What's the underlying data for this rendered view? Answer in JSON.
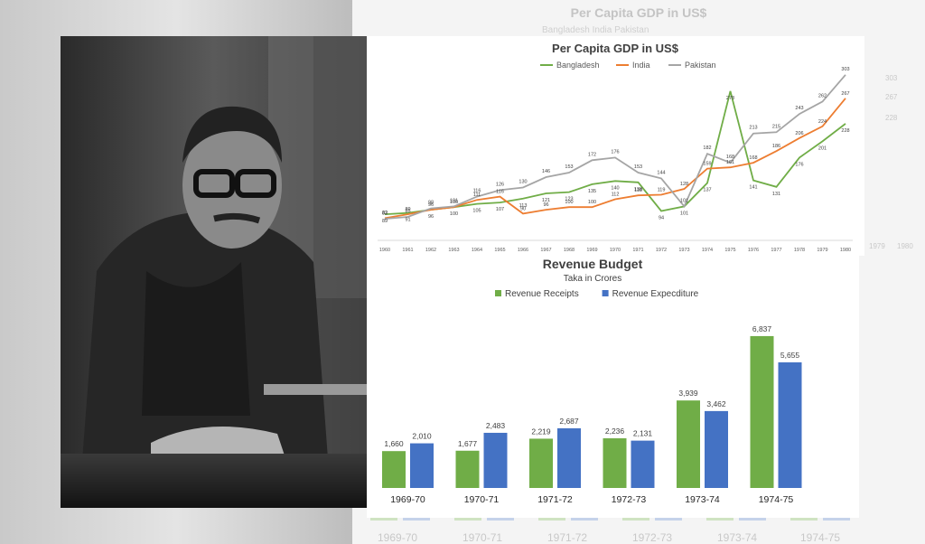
{
  "chart_data": [
    {
      "type": "line",
      "title": "Per Capita GDP in US$",
      "x": [
        "1960",
        "1961",
        "1962",
        "1963",
        "1964",
        "1965",
        "1966",
        "1967",
        "1968",
        "1969",
        "1970",
        "1971",
        "1972",
        "1973",
        "1974",
        "1975",
        "1976",
        "1977",
        "1978",
        "1979",
        "1980"
      ],
      "series": [
        {
          "name": "Bangladesh",
          "color": "#70ad47",
          "values": [
            89,
            91,
            96,
            100,
            105,
            107,
            113,
            121,
            123,
            135,
            140,
            138,
            94,
            101,
            137,
            278,
            141,
            131,
            176,
            201,
            228
          ]
        },
        {
          "name": "India",
          "color": "#ed7d31",
          "values": [
            83,
            89,
            96,
            100,
            111,
            116,
            90,
            96,
            100,
            100,
            112,
            118,
            119,
            128,
            159,
            161,
            168,
            186,
            206,
            224,
            267
          ]
        },
        {
          "name": "Pakistan",
          "color": "#a5a5a5",
          "values": [
            82,
            85,
            98,
            101,
            116,
            126,
            130,
            146,
            153,
            172,
            176,
            153,
            144,
            101,
            182,
            168,
            213,
            215,
            243,
            262,
            303
          ]
        }
      ],
      "legend": "top"
    },
    {
      "type": "bar",
      "title": "Revenue Budget",
      "subtitle": "Taka in Crores",
      "categories": [
        "1969-70",
        "1970-71",
        "1971-72",
        "1972-73",
        "1973-74",
        "1974-75"
      ],
      "series": [
        {
          "name": "Revenue Receipts",
          "color": "#70ad47",
          "values": [
            1660,
            1677,
            2219,
            2236,
            3939,
            6837
          ],
          "labels": [
            "1,660",
            "1,677",
            "2,219",
            "2,236",
            "3,939",
            "6,837"
          ]
        },
        {
          "name": "Revenue Expecditure",
          "color": "#4472c4",
          "values": [
            2010,
            2483,
            2687,
            2131,
            3462,
            5655
          ],
          "labels": [
            "2,010",
            "2,483",
            "2,687",
            "2,131",
            "3,462",
            "5,655"
          ]
        }
      ],
      "ylim": [
        0,
        7200
      ],
      "legend": "top"
    }
  ],
  "ghost": {
    "title": "Per Capita GDP in US$",
    "legend": "Bangladesh    India    Pakistan",
    "years": [
      "1969-70",
      "1970-71",
      "1971-72",
      "1972-73",
      "1973-74",
      "1974-75"
    ],
    "right_years": [
      "1979",
      "1980"
    ],
    "right_values": [
      "303",
      "267",
      "228"
    ]
  }
}
